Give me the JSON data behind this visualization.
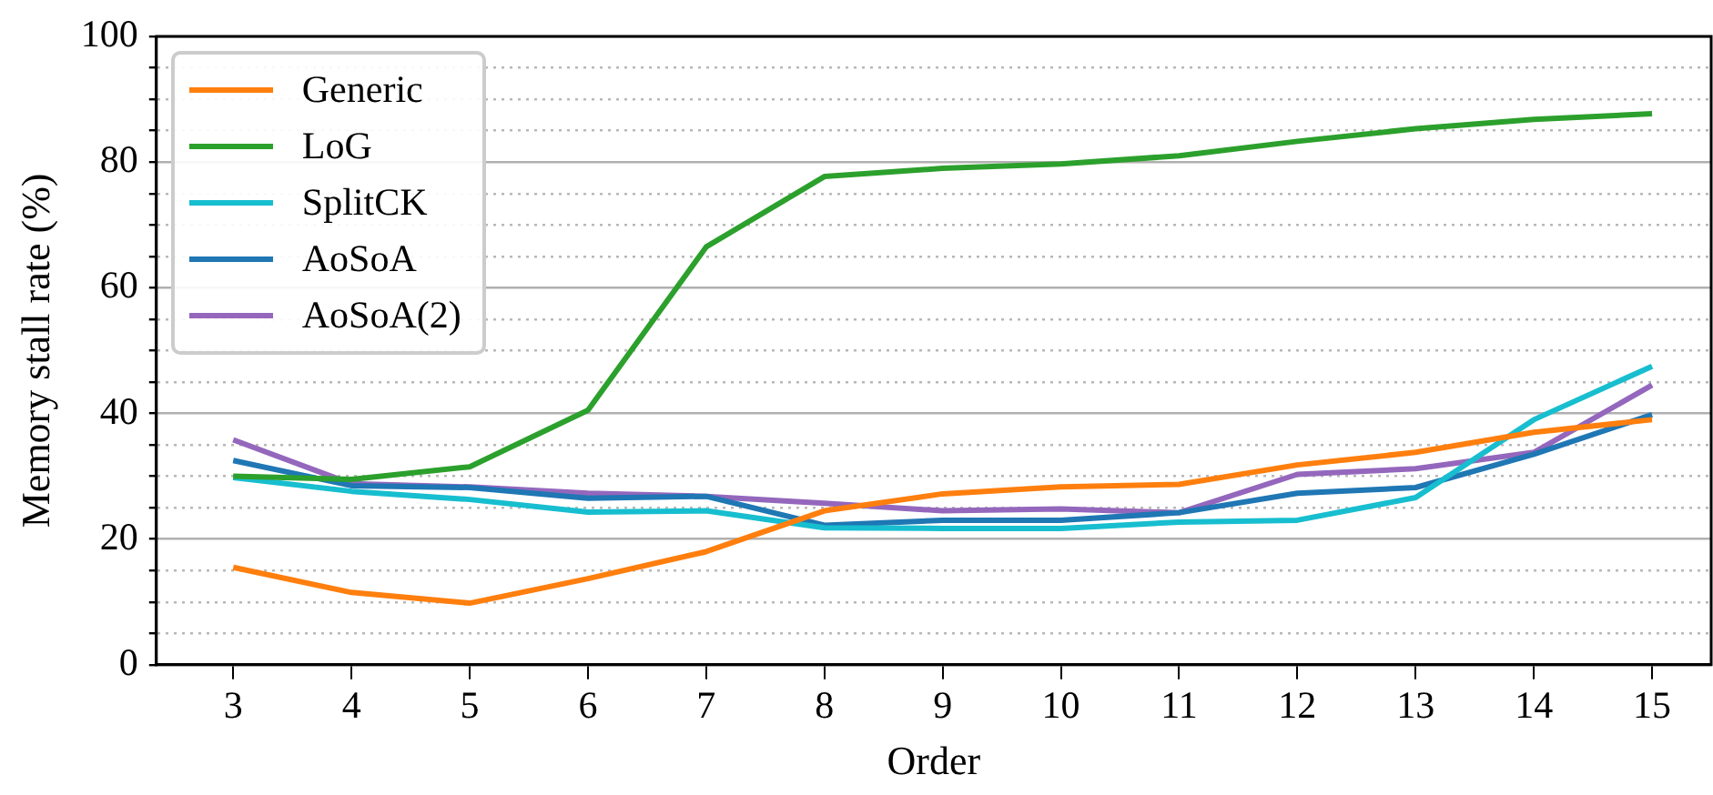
{
  "chart_data": {
    "type": "line",
    "xlabel": "Order",
    "ylabel": "Memory stall rate (%)",
    "x": [
      3,
      4,
      5,
      6,
      7,
      8,
      9,
      10,
      11,
      12,
      13,
      14,
      15
    ],
    "series": [
      {
        "name": "Generic",
        "color": "#ff7f0e",
        "values": [
          15.5,
          11.5,
          9.8,
          13.7,
          18,
          24.5,
          27.2,
          28.3,
          28.7,
          31.8,
          33.8,
          37,
          39
        ]
      },
      {
        "name": "LoG",
        "color": "#2ca02c",
        "values": [
          30,
          29.5,
          31.5,
          40.5,
          66.5,
          77.7,
          79,
          79.7,
          81,
          83.3,
          85.3,
          86.8,
          87.7
        ]
      },
      {
        "name": "SplitCK",
        "color": "#17becf",
        "values": [
          29.8,
          27.6,
          26.3,
          24.3,
          24.5,
          21.8,
          21.7,
          21.7,
          22.7,
          23,
          26.6,
          39,
          47.5
        ]
      },
      {
        "name": "AoSoA",
        "color": "#1f77b4",
        "values": [
          32.5,
          28.5,
          28.2,
          26.5,
          26.8,
          22.2,
          23,
          23,
          24.2,
          27.3,
          28.2,
          33.5,
          39.8
        ]
      },
      {
        "name": "AoSoA(2)",
        "color": "#9467bd",
        "values": [
          35.8,
          28.8,
          28.3,
          27.3,
          26.8,
          25.7,
          24.5,
          24.8,
          24.2,
          30.3,
          31.2,
          33.8,
          44.5
        ]
      }
    ],
    "xlim": [
      2.35,
      15.5
    ],
    "xticks": [
      3,
      4,
      5,
      6,
      7,
      8,
      9,
      10,
      11,
      12,
      13,
      14,
      15
    ],
    "ylim": [
      0,
      100
    ],
    "yticks": [
      0,
      {
        "value": 5,
        "label": null
      },
      {
        "value": 10,
        "label": null
      },
      {
        "value": 15,
        "label": null
      },
      20,
      {
        "value": 25,
        "label": null
      },
      {
        "value": 30,
        "label": null
      },
      {
        "value": 35,
        "label": null
      },
      40,
      {
        "value": 45,
        "label": null
      },
      {
        "value": 50,
        "label": null
      },
      {
        "value": 55,
        "label": null
      },
      60,
      {
        "value": 65,
        "label": null
      },
      {
        "value": 70,
        "label": null
      },
      {
        "value": 75,
        "label": null
      },
      80,
      {
        "value": 85,
        "label": null
      },
      {
        "value": 90,
        "label": null
      },
      {
        "value": 95,
        "label": null
      },
      100
    ],
    "grid": "y",
    "legend": "top left",
    "marker": "none",
    "line_style": "solid"
  }
}
